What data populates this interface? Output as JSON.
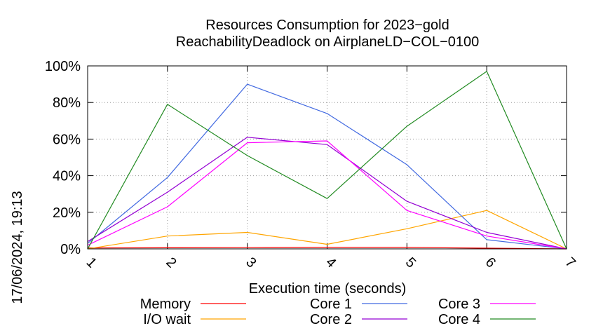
{
  "chart_data": {
    "type": "line",
    "title_lines": [
      "Resources Consumption for 2023−gold",
      "ReachabilityDeadlock on AirplaneLD−COL−0100"
    ],
    "xlabel": "Execution time (seconds)",
    "ylabel": "",
    "side_label": "17/06/2024, 19:13",
    "x": [
      1,
      2,
      3,
      4,
      5,
      6,
      7
    ],
    "x_ticks": [
      "1",
      "2",
      "3",
      "4",
      "5",
      "6",
      "7"
    ],
    "xlim": [
      1,
      7
    ],
    "ylim": [
      0,
      100
    ],
    "y_ticks": [
      "0%",
      "20%",
      "40%",
      "60%",
      "80%",
      "100%"
    ],
    "grid": true,
    "legend_position": "bottom",
    "series": [
      {
        "name": "Memory",
        "color": "#ff0000",
        "values": [
          0.5,
          0.6,
          0.7,
          0.8,
          0.8,
          0.4,
          0
        ]
      },
      {
        "name": "I/O wait",
        "color": "#ffa500",
        "values": [
          0,
          7,
          9,
          2.5,
          11,
          21,
          0
        ]
      },
      {
        "name": "Core 1",
        "color": "#4169e1",
        "values": [
          3,
          39,
          90,
          74,
          46,
          5,
          0
        ]
      },
      {
        "name": "Core 2",
        "color": "#9400d3",
        "values": [
          4,
          31,
          61,
          57,
          26,
          9,
          0
        ]
      },
      {
        "name": "Core 3",
        "color": "#ff00ff",
        "values": [
          2,
          23,
          58,
          59,
          21,
          7,
          0
        ]
      },
      {
        "name": "Core 4",
        "color": "#228b22",
        "values": [
          0,
          79,
          51,
          27.5,
          67,
          97,
          0
        ]
      }
    ]
  }
}
